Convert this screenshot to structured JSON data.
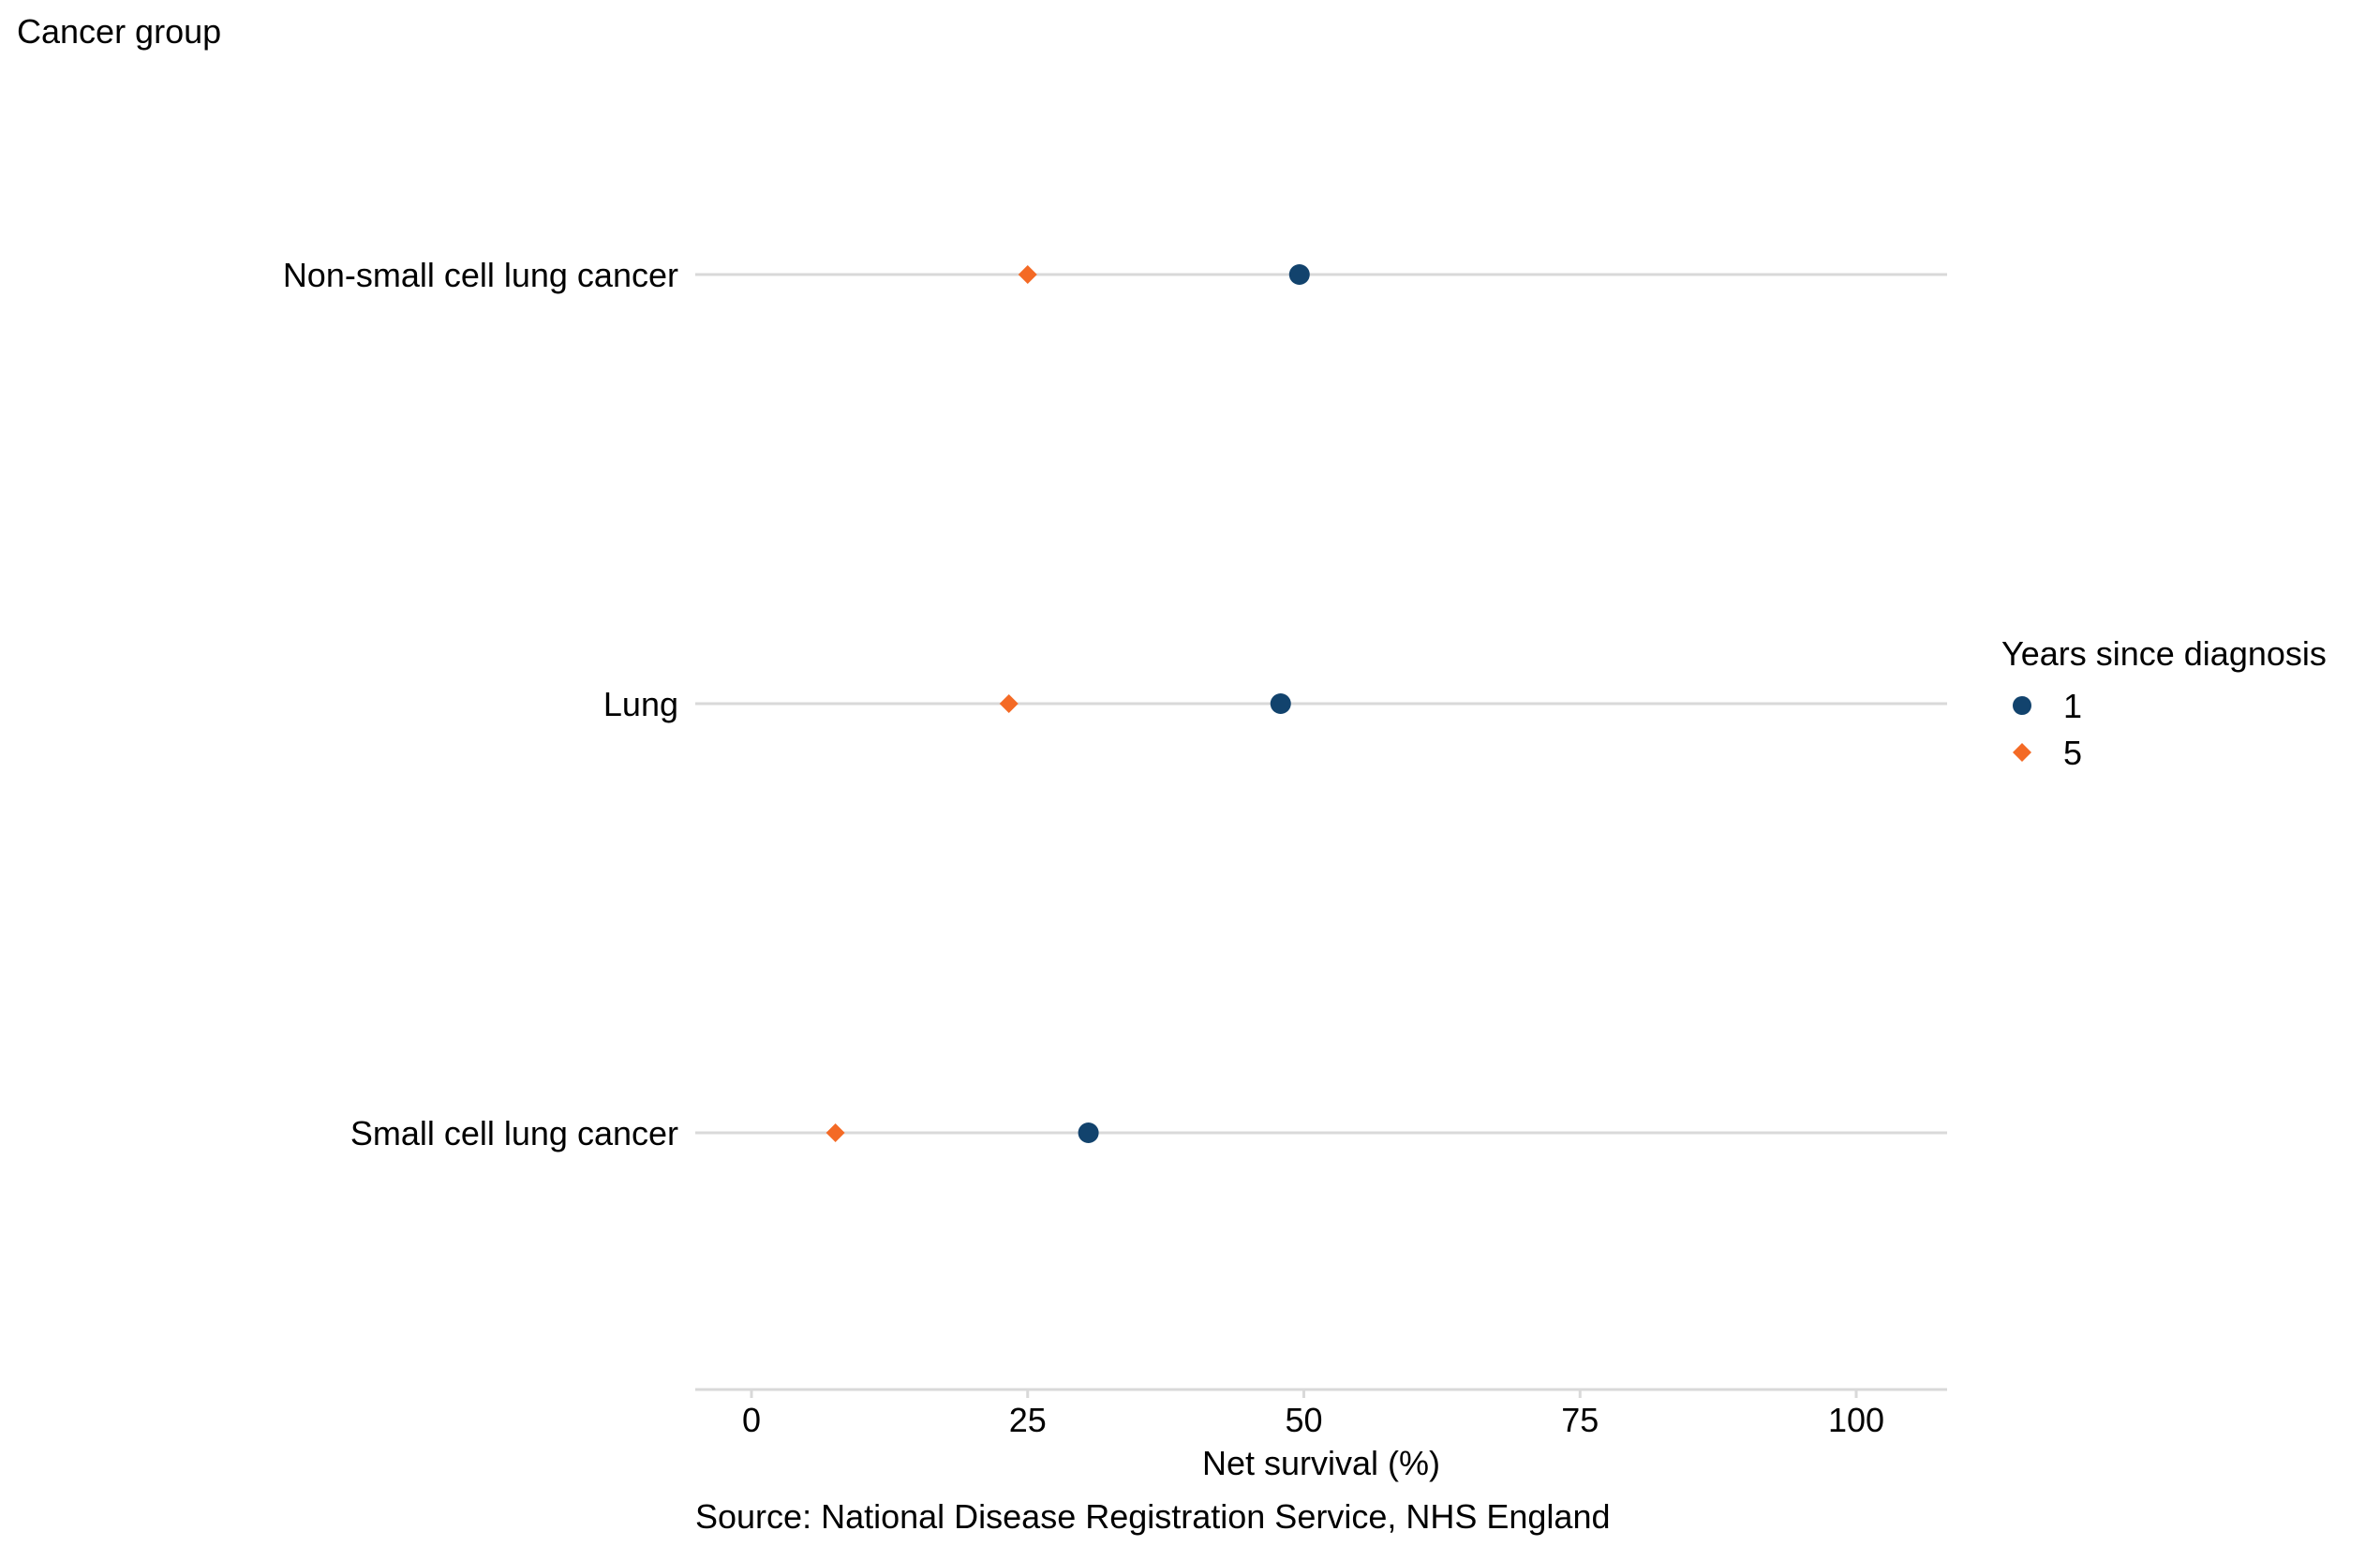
{
  "chart_data": {
    "type": "scatter",
    "orientation": "horizontal-dot-plot",
    "ylabel": "Cancer group",
    "xlabel": "Net survival (%)",
    "caption": "Source: National Disease Registration Service, NHS England",
    "categories": [
      "Non-small cell lung cancer",
      "Lung",
      "Small cell lung cancer"
    ],
    "x_ticks": [
      0,
      25,
      50,
      75,
      100
    ],
    "x_tick_labels": [
      "0",
      "25",
      "50",
      "75",
      "100"
    ],
    "xlim": [
      -5,
      108
    ],
    "grid": "horizontal lines per category",
    "legend": {
      "title": "Years since diagnosis",
      "position": "right"
    },
    "series": [
      {
        "name": "1",
        "marker": "circle",
        "color": "#12436d",
        "values": [
          49.6,
          47.9,
          30.5
        ]
      },
      {
        "name": "5",
        "marker": "diamond",
        "color": "#f46a25",
        "values": [
          25.0,
          23.3,
          7.6
        ]
      }
    ]
  },
  "colors": {
    "gridline": "#d9d9d9",
    "axis_line": "#d9d9d9"
  }
}
